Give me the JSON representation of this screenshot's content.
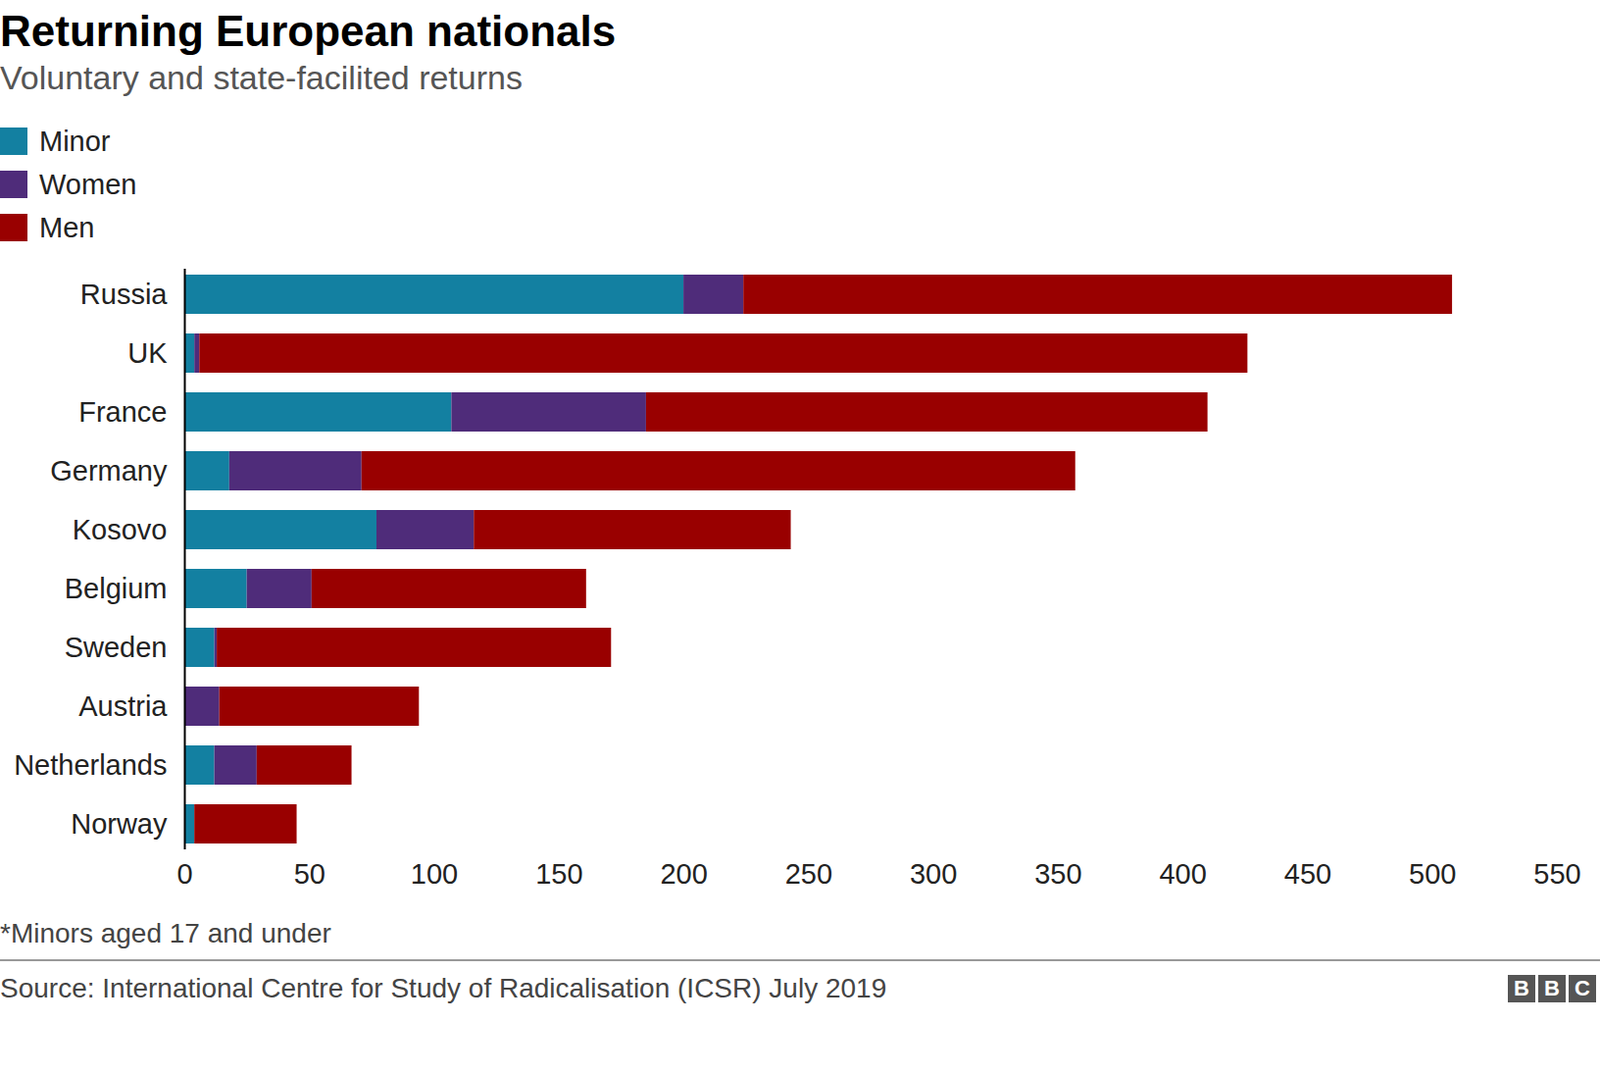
{
  "chart_data": {
    "type": "bar",
    "orientation": "horizontal",
    "stacked": true,
    "title": "Returning European nationals",
    "subtitle": "Voluntary and state-facilited returns",
    "categories": [
      "Russia",
      "UK",
      "France",
      "Germany",
      "Kosovo",
      "Belgium",
      "Sweden",
      "Austria",
      "Netherlands",
      "Norway"
    ],
    "series": [
      {
        "name": "Minor",
        "color": "#1380a1",
        "values": [
          200,
          4,
          107,
          18,
          77,
          25,
          12,
          0,
          12,
          4
        ]
      },
      {
        "name": "Women",
        "color": "#4f2c7a",
        "values": [
          24,
          2,
          78,
          53,
          39,
          26,
          1,
          14,
          17,
          0
        ]
      },
      {
        "name": "Men",
        "color": "#990000",
        "values": [
          284,
          420,
          225,
          286,
          127,
          110,
          158,
          80,
          38,
          41
        ]
      }
    ],
    "xlim": [
      0,
      550
    ],
    "xticks": [
      0,
      50,
      100,
      150,
      200,
      250,
      300,
      350,
      400,
      450,
      500,
      550
    ],
    "grid": false,
    "legend": "top-left",
    "note": "*Minors aged 17 and under",
    "source": "Source: International Centre for Study of Radicalisation (ICSR) July 2019",
    "logo": "BBC"
  }
}
